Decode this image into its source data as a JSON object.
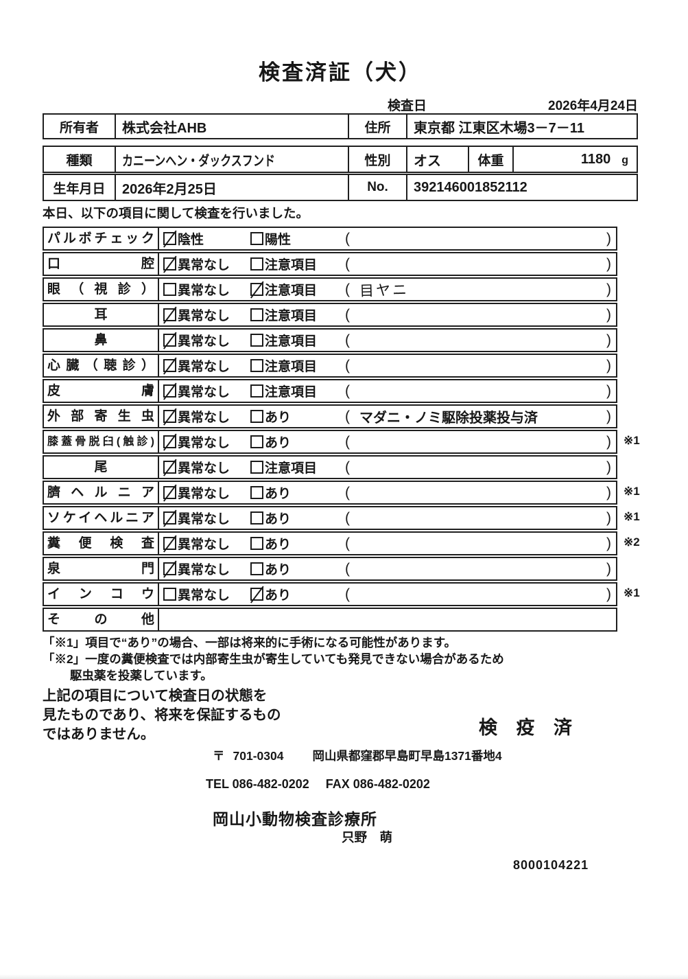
{
  "header": {
    "title": "検査済証（犬）",
    "date_label": "検査日",
    "date_value": "2026年4月24日"
  },
  "owner_table": {
    "owner_label": "所有者",
    "owner_value": "株式会社AHB",
    "address_label": "住所",
    "address_value": "東京都 江東区木場3－7－11"
  },
  "pet_table": {
    "breed_label": "種類",
    "breed_value": "カニーンヘン・ダックスフンド",
    "sex_label": "性別",
    "sex_value": "オス",
    "weight_label": "体重",
    "weight_value": "1180",
    "weight_unit": "g",
    "birth_label": "生年月日",
    "birth_value": "2026年2月25日",
    "no_label": "No.",
    "no_value": "392146001852112"
  },
  "intro": "本日、以下の項目に関して検査を行いました。",
  "checklist": {
    "rows": [
      {
        "label": "パルボチェック",
        "opt1": "陰性",
        "opt1_checked": true,
        "opt2": "陽性",
        "opt2_checked": false,
        "note": "",
        "mark": ""
      },
      {
        "label": "口腔",
        "opt1": "異常なし",
        "opt1_checked": true,
        "opt2": "注意項目",
        "opt2_checked": false,
        "note": "",
        "mark": ""
      },
      {
        "label": "眼（視診）",
        "opt1": "異常なし",
        "opt1_checked": false,
        "opt2": "注意項目",
        "opt2_checked": true,
        "note": "目ヤニ",
        "note_handwritten": true,
        "mark": ""
      },
      {
        "label": "耳",
        "opt1": "異常なし",
        "opt1_checked": true,
        "opt2": "注意項目",
        "opt2_checked": false,
        "note": "",
        "mark": ""
      },
      {
        "label": "鼻",
        "opt1": "異常なし",
        "opt1_checked": true,
        "opt2": "注意項目",
        "opt2_checked": false,
        "note": "",
        "mark": ""
      },
      {
        "label": "心臓（聴診）",
        "opt1": "異常なし",
        "opt1_checked": true,
        "opt2": "注意項目",
        "opt2_checked": false,
        "note": "",
        "mark": ""
      },
      {
        "label": "皮膚",
        "opt1": "異常なし",
        "opt1_checked": true,
        "opt2": "注意項目",
        "opt2_checked": false,
        "note": "",
        "mark": ""
      },
      {
        "label": "外部寄生虫",
        "opt1": "異常なし",
        "opt1_checked": true,
        "opt2": "あり",
        "opt2_checked": false,
        "note": "マダニ・ノミ駆除投薬投与済",
        "mark": ""
      },
      {
        "label": "膝蓋骨脱臼(触診)",
        "opt1": "異常なし",
        "opt1_checked": true,
        "opt2": "あり",
        "opt2_checked": false,
        "note": "",
        "mark": "※1"
      },
      {
        "label": "尾",
        "opt1": "異常なし",
        "opt1_checked": true,
        "opt2": "注意項目",
        "opt2_checked": false,
        "note": "",
        "mark": ""
      },
      {
        "label": "臍ヘルニア",
        "opt1": "異常なし",
        "opt1_checked": true,
        "opt2": "あり",
        "opt2_checked": false,
        "note": "",
        "mark": "※1"
      },
      {
        "label": "ソケイヘルニア",
        "opt1": "異常なし",
        "opt1_checked": true,
        "opt2": "あり",
        "opt2_checked": false,
        "note": "",
        "mark": "※1"
      },
      {
        "label": "糞便検査",
        "opt1": "異常なし",
        "opt1_checked": true,
        "opt2": "あり",
        "opt2_checked": false,
        "note": "",
        "mark": "※2"
      },
      {
        "label": "泉門",
        "opt1": "異常なし",
        "opt1_checked": true,
        "opt2": "あり",
        "opt2_checked": false,
        "note": "",
        "mark": ""
      },
      {
        "label": "インコウ",
        "opt1": "異常なし",
        "opt1_checked": false,
        "opt2": "あり",
        "opt2_checked": true,
        "note": "",
        "mark": "※1"
      },
      {
        "label": "その他",
        "mark": ""
      }
    ]
  },
  "footnotes": [
    "「※1」項目で“あり”の場合、一部は将来的に手術になる可能性があります。",
    "「※2」一度の糞便検査では内部寄生虫が寄生していても発見できない場合があるため",
    "駆虫薬を投薬しています。"
  ],
  "statement": {
    "lines": [
      "上記の項目について検査日の状態を",
      "見たものであり、将来を保証するもの",
      "ではありません。"
    ],
    "stamp": "検 疫 済"
  },
  "clinic": {
    "postal_mark": "〒",
    "postal_code": "701-0304",
    "address": "岡山県都窪郡早島町早島1371番地4",
    "tel": "TEL 086-482-0202",
    "fax": "FAX 086-482-0202",
    "name": "岡山小動物検査診療所",
    "vet": "只野　萌",
    "serial": "8000104221"
  }
}
